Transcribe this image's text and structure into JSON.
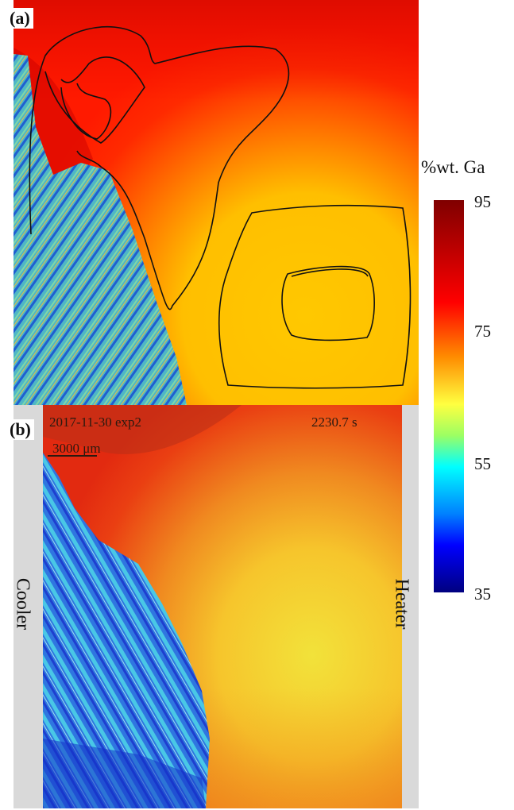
{
  "panels": {
    "a": {
      "label": "(a)"
    },
    "b": {
      "label": "(b)",
      "experiment": "2017-11-30 exp2",
      "time": "2230.7 s",
      "scale_bar": "3000 μm"
    }
  },
  "side_labels": {
    "left": "Cooler",
    "right": "Heater"
  },
  "colorbar": {
    "title": "%wt. Ga",
    "ticks": [
      "95",
      "75",
      "55",
      "35"
    ],
    "colors": [
      "#7f0000",
      "#ff0000",
      "#ff8c00",
      "#ffff40",
      "#00ffff",
      "#0000ff",
      "#00007f"
    ]
  }
}
